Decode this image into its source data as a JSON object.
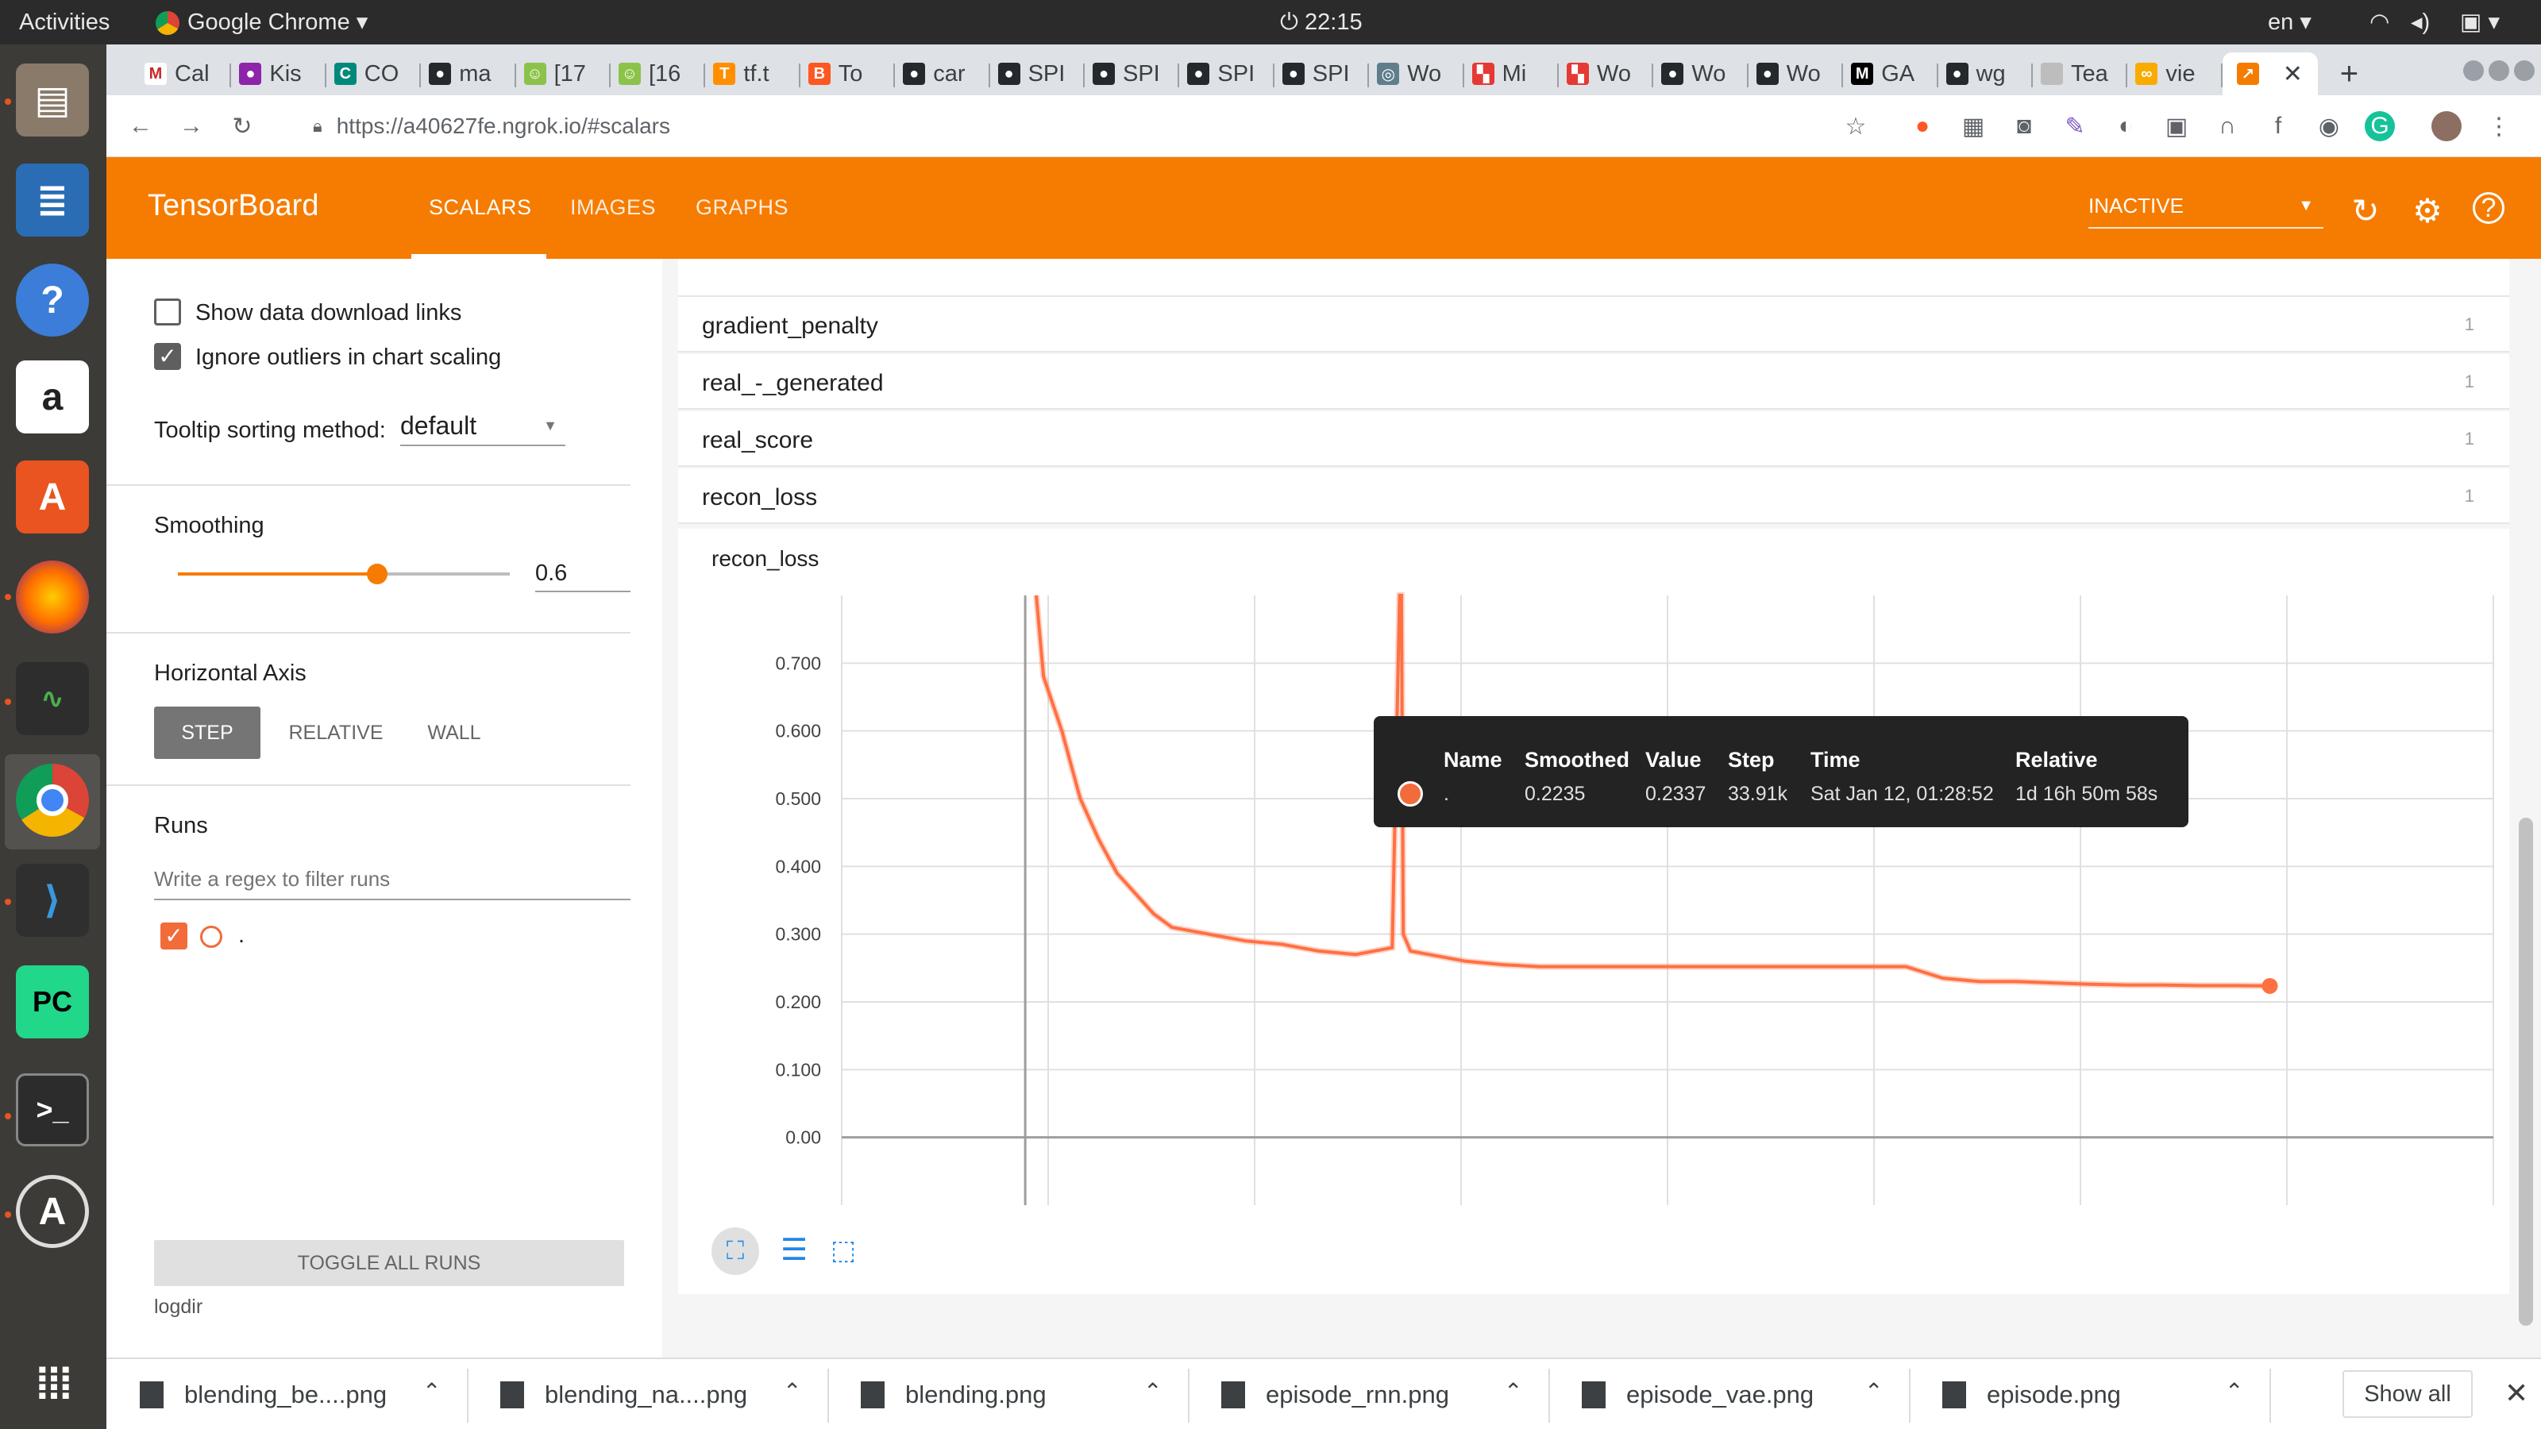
{
  "system": {
    "activities": "Activities",
    "app_name": "Google Chrome",
    "clock": "22:15",
    "language": "en"
  },
  "browser": {
    "tabs": [
      {
        "label": "Cal",
        "icon": "gmail-icon"
      },
      {
        "label": "Kis",
        "icon": "colorful-icon"
      },
      {
        "label": "CO",
        "icon": "co-icon"
      },
      {
        "label": "ma",
        "icon": "github-icon"
      },
      {
        "label": "[17",
        "icon": "smiley-icon"
      },
      {
        "label": "[16",
        "icon": "smiley-icon"
      },
      {
        "label": "tf.t",
        "icon": "tensorflow-icon"
      },
      {
        "label": "To",
        "icon": "blogger-icon"
      },
      {
        "label": "car",
        "icon": "github-icon"
      },
      {
        "label": "SPI",
        "icon": "github-icon"
      },
      {
        "label": "SPI",
        "icon": "github-icon"
      },
      {
        "label": "SPI",
        "icon": "github-icon"
      },
      {
        "label": "SPI",
        "icon": "github-icon"
      },
      {
        "label": "Wo",
        "icon": "globe-icon"
      },
      {
        "label": "Mi",
        "icon": "mi-icon"
      },
      {
        "label": "Wo",
        "icon": "wo-icon"
      },
      {
        "label": "Wo",
        "icon": "github-icon"
      },
      {
        "label": "Wo",
        "icon": "github-icon"
      },
      {
        "label": "GA",
        "icon": "medium-icon"
      },
      {
        "label": "wg",
        "icon": "github-icon"
      },
      {
        "label": "Tea",
        "icon": "page-icon"
      },
      {
        "label": "vie",
        "icon": "colab-icon"
      }
    ],
    "url": "https://a40627fe.ngrok.io/#scalars"
  },
  "tensorboard": {
    "logo": "TensorBoard",
    "nav": [
      "SCALARS",
      "IMAGES",
      "GRAPHS"
    ],
    "run_selector": "INACTIVE",
    "sidebar": {
      "show_download_links": "Show data download links",
      "ignore_outliers": "Ignore outliers in chart scaling",
      "tooltip_sorting_label": "Tooltip sorting method:",
      "tooltip_sorting_value": "default",
      "smoothing_label": "Smoothing",
      "smoothing_value": "0.6",
      "smoothing_fraction": 0.6,
      "horizontal_axis_label": "Horizontal Axis",
      "axis_options": [
        "STEP",
        "RELATIVE",
        "WALL"
      ],
      "runs_label": "Runs",
      "runs_filter_placeholder": "Write a regex to filter runs",
      "run_name": ".",
      "toggle_all": "TOGGLE ALL RUNS",
      "logdir": "logdir"
    },
    "categories": [
      {
        "name": "gradient_penalty",
        "count": "1"
      },
      {
        "name": "real_-_generated",
        "count": "1"
      },
      {
        "name": "real_score",
        "count": "1"
      },
      {
        "name": "recon_loss",
        "count": "1"
      }
    ],
    "tooltip": {
      "headers": [
        "Name",
        "Smoothed",
        "Value",
        "Step",
        "Time",
        "Relative"
      ],
      "row": {
        "name": ".",
        "smoothed": "0.2235",
        "value": "0.2337",
        "step": "33.91k",
        "time": "Sat Jan 12, 01:28:52",
        "relative": "1d 16h 50m 58s"
      }
    },
    "chart_title": "recon_loss"
  },
  "chart_data": {
    "type": "line",
    "title": "recon_loss",
    "xlabel": "",
    "ylabel": "",
    "ylim": [
      -0.1,
      0.8
    ],
    "xlim": [
      -5,
      40
    ],
    "yticks": [
      "0.700",
      "0.600",
      "0.500",
      "0.400",
      "0.300",
      "0.200",
      "0.100",
      "0.00"
    ],
    "ytick_values": [
      0.7,
      0.6,
      0.5,
      0.4,
      0.3,
      0.2,
      0.1,
      0.0
    ],
    "color": "#ff7043",
    "series": [
      {
        "x": [
          0.3,
          0.5,
          1,
          1.5,
          2,
          2.5,
          3,
          3.5,
          4,
          5,
          6,
          7,
          8,
          9,
          10,
          10.2,
          10.25,
          10.3,
          10.5,
          11,
          12,
          13,
          14,
          15,
          16,
          17,
          18,
          19,
          20,
          21,
          22,
          23,
          24,
          25,
          26,
          27,
          28,
          29,
          30,
          31,
          32,
          33,
          33.91
        ],
        "y": [
          0.8,
          0.68,
          0.6,
          0.5,
          0.44,
          0.39,
          0.36,
          0.33,
          0.31,
          0.3,
          0.29,
          0.285,
          0.275,
          0.27,
          0.28,
          0.8,
          0.8,
          0.3,
          0.275,
          0.27,
          0.26,
          0.255,
          0.252,
          0.252,
          0.252,
          0.252,
          0.252,
          0.252,
          0.252,
          0.252,
          0.252,
          0.252,
          0.252,
          0.235,
          0.23,
          0.23,
          0.228,
          0.226,
          0.225,
          0.225,
          0.224,
          0.224,
          0.2235
        ]
      }
    ]
  },
  "downloads": [
    "blending_be....png",
    "blending_na....png",
    "blending.png",
    "episode_rnn.png",
    "episode_vae.png",
    "episode.png"
  ],
  "downloads_show_all": "Show all"
}
